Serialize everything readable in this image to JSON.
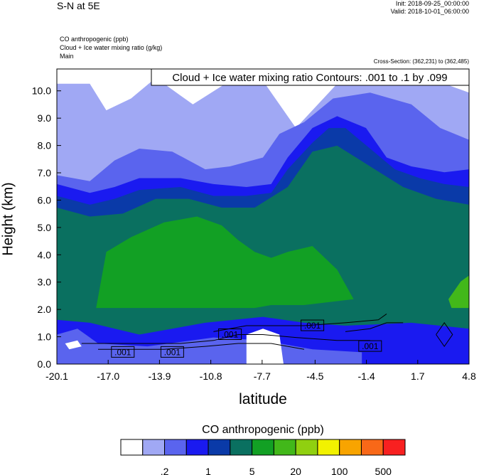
{
  "header": {
    "title": "S-N at 5E",
    "init": "Init: 2018-09-25_00:00:00",
    "valid": "Valid: 2018-10-01_06:00:00",
    "var1": "CO anthropogenic   (ppb)",
    "var2": "Cloud + Ice water mixing ratio   (g/kg)",
    "var3": "Main",
    "cross_section": "Cross-Section: (362,231) to (362,485)"
  },
  "chart_data": {
    "type": "heatmap",
    "title": "S-N at 5E",
    "xlabel": "latitude",
    "ylabel": "Height (km)",
    "xlim": [
      -20.1,
      4.8
    ],
    "ylim": [
      0.0,
      10.8
    ],
    "x_ticks": [
      "-20.1",
      "-17.0",
      "-13.9",
      "-10.8",
      "-7.7",
      "-4.5",
      "-1.4",
      "1.7",
      "4.8"
    ],
    "y_ticks": [
      "0.0",
      "1.0",
      "2.0",
      "3.0",
      "4.0",
      "5.0",
      "6.0",
      "7.0",
      "8.0",
      "9.0",
      "10.0"
    ],
    "contour_label": "Cloud + Ice water mixing ratio Contours: .001 to .1 by .099",
    "contour_values": [
      ".001",
      ".001",
      ".001",
      ".001",
      ".001"
    ],
    "colorbar": {
      "title": "CO anthropogenic  (ppb)",
      "labels": [
        ".2",
        "1",
        "5",
        "20",
        "100",
        "500"
      ],
      "colors": [
        "#ffffff",
        "#a0a8f4",
        "#5a64ee",
        "#1a1af0",
        "#0a3aa8",
        "#0a7060",
        "#12a024",
        "#42b81a",
        "#90d010",
        "#f2f200",
        "#f8a400",
        "#f86818",
        "#f82020"
      ]
    },
    "colors": {
      "white": "#ffffff",
      "light_lavender": "#a0a8f4",
      "medium_blue": "#5a64ee",
      "bright_blue": "#1a1af0",
      "dark_blue": "#0a3aa8",
      "teal": "#0a7060",
      "green": "#12a024",
      "light_green": "#42b81a",
      "yellow_green": "#90d010"
    }
  }
}
